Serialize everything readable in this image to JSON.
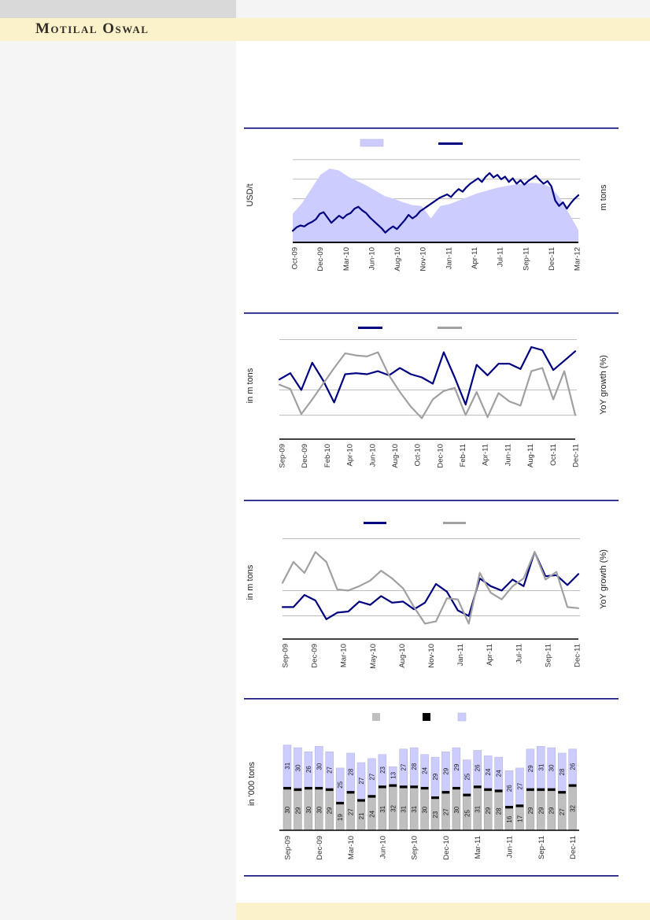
{
  "header": {
    "brand": "Motilal Oswal"
  },
  "page_colors": {
    "accent_navy": "#000080",
    "periwinkle": "#CCCCFF",
    "series_gray": "#A0A0A0",
    "bar_gray": "#BFBFBF",
    "band_yellow": "#FBF2CB",
    "top_bar_gray": "#D9D9D9",
    "left_panel_gray": "#F5F5F5",
    "separator_navy": "#16167F",
    "gridline_gray": "#A8A8A8"
  },
  "chart_data": [
    {
      "type": "area",
      "title": "",
      "left_axis_label": "USD/t",
      "right_axis_label": "m tons",
      "x_tick_labels": [
        "Oct-09",
        "Dec-09",
        "Mar-10",
        "Jun-10",
        "Aug-10",
        "Nov-10",
        "Jan-11",
        "Apr-11",
        "Jul-11",
        "Sep-11",
        "Dec-11",
        "Mar-12"
      ],
      "legend": [
        {
          "swatch": "area",
          "color": "#CCCCFF",
          "label": ""
        },
        {
          "swatch": "line",
          "color": "#000080",
          "label": ""
        }
      ],
      "ylim": [
        0,
        100
      ],
      "values_scale": "normalized 0-100, no numeric y-axis ticks visible",
      "grid": "horizontal gridlines on",
      "series": [
        {
          "name": "shaded-area",
          "type": "area",
          "color": "#CCCCFF",
          "values": [
            32,
            44,
            60,
            76,
            83,
            81,
            74,
            69,
            64,
            58,
            52,
            49,
            45,
            42,
            41,
            27,
            41,
            43,
            47,
            51,
            55,
            58,
            61,
            63,
            65,
            66,
            67,
            66,
            62,
            50,
            32,
            14
          ]
        },
        {
          "name": "price-line",
          "type": "line",
          "color": "#000080",
          "values": [
            13,
            17,
            19,
            18,
            21,
            23,
            26,
            32,
            34,
            28,
            22,
            26,
            30,
            27,
            31,
            33,
            38,
            40,
            36,
            33,
            28,
            24,
            20,
            16,
            11,
            15,
            18,
            15,
            20,
            25,
            31,
            27,
            30,
            35,
            38,
            41,
            44,
            47,
            50,
            52,
            54,
            51,
            56,
            60,
            57,
            62,
            66,
            69,
            72,
            68,
            74,
            78,
            73,
            76,
            71,
            74,
            68,
            72,
            66,
            70,
            65,
            69,
            72,
            75,
            70,
            66,
            69,
            63,
            47,
            41,
            45,
            38,
            44,
            49,
            53
          ]
        }
      ]
    },
    {
      "type": "line",
      "title": "",
      "left_axis_label": "in m tons",
      "right_axis_label": "YoY growth (%)",
      "x_tick_labels": [
        "Sep-09",
        "Dec-09",
        "Feb-10",
        "Apr-10",
        "Jun-10",
        "Aug-10",
        "Oct-10",
        "Dec-10",
        "Feb-11",
        "Apr-11",
        "Jun-11",
        "Aug-11",
        "Oct-11",
        "Dec-11"
      ],
      "legend": [
        {
          "swatch": "line",
          "color": "#000080",
          "label": ""
        },
        {
          "swatch": "line",
          "color": "#A0A0A0",
          "label": ""
        }
      ],
      "ylim": [
        0,
        100
      ],
      "values_scale": "normalized 0-100, no numeric y-axis ticks visible",
      "grid": "horizontal gridlines on",
      "series": [
        {
          "name": "navy-line",
          "type": "line",
          "color": "#000080",
          "values": [
            57,
            63,
            47,
            73,
            56,
            35,
            62,
            63,
            62,
            65,
            61,
            68,
            62,
            59,
            53,
            83,
            59,
            33,
            71,
            61,
            72,
            72,
            67,
            88,
            85,
            66,
            75,
            84
          ]
        },
        {
          "name": "gray-line",
          "type": "line",
          "color": "#A0A0A0",
          "values": [
            52,
            48,
            24,
            38,
            53,
            68,
            82,
            80,
            79,
            83,
            61,
            45,
            31,
            20,
            38,
            46,
            49,
            23,
            45,
            21,
            44,
            36,
            32,
            65,
            68,
            38,
            65,
            23
          ]
        }
      ]
    },
    {
      "type": "line",
      "title": "",
      "left_axis_label": "in m tons",
      "right_axis_label": "YoY growth (%)",
      "x_tick_labels": [
        "Sep-09",
        "Dec-09",
        "Mar-10",
        "May-10",
        "Aug-10",
        "Nov-10",
        "Jan-11",
        "Apr-11",
        "Jul-11",
        "Sep-11",
        "Dec-11"
      ],
      "legend": [
        {
          "swatch": "line",
          "color": "#000080",
          "label": ""
        },
        {
          "swatch": "line",
          "color": "#A0A0A0",
          "label": ""
        }
      ],
      "ylim": [
        0,
        100
      ],
      "values_scale": "normalized 0-100, no numeric y-axis ticks visible",
      "grid": "horizontal gridlines on",
      "series": [
        {
          "name": "navy-line",
          "type": "line",
          "color": "#000080",
          "values": [
            29,
            29,
            40,
            35,
            18,
            24,
            25,
            34,
            31,
            39,
            33,
            34,
            27,
            33,
            50,
            43,
            26,
            21,
            55,
            48,
            44,
            54,
            48,
            79,
            57,
            58,
            49,
            59
          ]
        },
        {
          "name": "gray-line",
          "type": "line",
          "color": "#A0A0A0",
          "values": [
            51,
            70,
            60,
            79,
            70,
            45,
            44,
            48,
            53,
            62,
            55,
            46,
            29,
            14,
            16,
            37,
            36,
            14,
            60,
            42,
            36,
            48,
            55,
            79,
            54,
            61,
            29,
            28
          ]
        }
      ]
    },
    {
      "type": "bar",
      "subtype": "stacked",
      "title": "",
      "left_axis_label": "in '000 tons",
      "x_tick_labels": [
        "Sep-09",
        "Dec-09",
        "Mar-10",
        "Jun-10",
        "Sep-10",
        "Dec-10",
        "Mar-11",
        "Jun-11",
        "Sep-11",
        "Dec-11"
      ],
      "bars_per_tick": 3,
      "legend": [
        {
          "swatch": "square",
          "color": "#BFBFBF",
          "label": ""
        },
        {
          "swatch": "square",
          "color": "#000000",
          "label": ""
        },
        {
          "swatch": "square",
          "color": "#CCCCFF",
          "label": ""
        }
      ],
      "series": [
        {
          "name": "bottom-gray-segment",
          "color": "#BFBFBF",
          "labels_visible": true,
          "values": [
            30,
            29,
            30,
            30,
            29,
            19,
            27,
            21,
            24,
            31,
            32,
            31,
            31,
            30,
            23,
            27,
            30,
            25,
            31,
            29,
            28,
            16,
            17,
            29,
            29,
            29,
            27,
            32
          ]
        },
        {
          "name": "middle-black-segment",
          "color": "#000000",
          "labels_visible": false,
          "values": [
            2,
            2,
            2,
            2,
            2,
            2,
            2,
            2,
            2,
            2,
            2,
            2,
            2,
            2,
            2,
            2,
            2,
            2,
            2,
            2,
            2,
            2,
            2,
            2,
            2,
            2,
            2,
            2
          ]
        },
        {
          "name": "top-purple-segment",
          "color": "#CCCCFF",
          "labels_visible": true,
          "values": [
            31,
            30,
            26,
            30,
            27,
            25,
            28,
            27,
            27,
            23,
            13,
            27,
            28,
            24,
            29,
            29,
            29,
            25,
            26,
            24,
            24,
            26,
            27,
            29,
            31,
            30,
            28,
            26
          ]
        }
      ]
    }
  ]
}
